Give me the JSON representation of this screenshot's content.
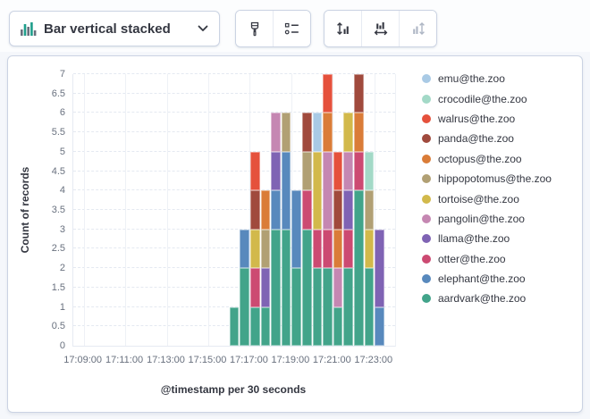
{
  "toolbar": {
    "chart_type": {
      "label": "Bar vertical stacked",
      "icon": "bar-vertical-stacked-icon"
    },
    "style_buttons": [
      {
        "name": "visual-options",
        "icon": "brush-icon"
      },
      {
        "name": "legend-settings",
        "icon": "legend-list-icon"
      }
    ],
    "axis_buttons": [
      {
        "name": "left-axis-settings",
        "icon": "axis-left-icon",
        "disabled": false
      },
      {
        "name": "bottom-axis-settings",
        "icon": "axis-bottom-icon",
        "disabled": false
      },
      {
        "name": "right-axis-settings",
        "icon": "axis-right-icon",
        "disabled": true
      }
    ]
  },
  "colors": {
    "icon_green": "#1E9E8B",
    "icon_gray": "#69707D",
    "disabled_icon": "#AEB6C4",
    "text_dark": "#343741",
    "tick_text": "#68707E",
    "border": "#CBD3E3",
    "page_bg": "#F5F7FB"
  },
  "chart_data": {
    "type": "bar",
    "stacked": true,
    "orientation": "vertical",
    "xlabel": "@timestamp per 30 seconds",
    "ylabel": "Count of records",
    "ylim": [
      0,
      7
    ],
    "y_tick_labels": [
      "0",
      "0.5",
      "1",
      "1.5",
      "2",
      "2.5",
      "3",
      "3.5",
      "4",
      "4.5",
      "5",
      "5.5",
      "6",
      "6.5",
      "7"
    ],
    "x_tick_labels": [
      "17:09:00",
      "17:11:00",
      "17:13:00",
      "17:15:00",
      "17:17:00",
      "17:19:00",
      "17:21:00",
      "17:23:00"
    ],
    "x_tick_slots": [
      1,
      5,
      9,
      13,
      17,
      21,
      25,
      29
    ],
    "total_slots": 31,
    "x_domain_start": "17:08:30",
    "bucket_interval": "30 seconds",
    "first_bar_slot": 15,
    "bar_times": [
      "17:16:00",
      "17:16:30",
      "17:17:00",
      "17:17:30",
      "17:18:00",
      "17:18:30",
      "17:19:00",
      "17:19:30",
      "17:20:00",
      "17:20:30",
      "17:21:00",
      "17:21:30",
      "17:22:00",
      "17:22:30",
      "17:23:00"
    ],
    "legend_position": "right",
    "series": [
      {
        "name": "aardvark@the.zoo",
        "color": "#42A48A",
        "values": [
          1,
          2,
          1,
          1,
          3,
          3,
          2,
          3,
          2,
          2,
          1,
          2,
          4,
          2,
          0
        ]
      },
      {
        "name": "elephant@the.zoo",
        "color": "#5889BD",
        "values": [
          0,
          1,
          0,
          0,
          1,
          2,
          2,
          0,
          0,
          0,
          0,
          0,
          0,
          0,
          1
        ]
      },
      {
        "name": "otter@the.zoo",
        "color": "#CC4A72",
        "values": [
          0,
          0,
          1,
          0,
          0,
          0,
          0,
          1,
          1,
          1,
          0,
          1,
          1,
          0,
          0
        ]
      },
      {
        "name": "llama@the.zoo",
        "color": "#7F63B4",
        "values": [
          0,
          0,
          0,
          1,
          1,
          0,
          0,
          0,
          0,
          0,
          0,
          1,
          0,
          0,
          2
        ]
      },
      {
        "name": "pangolin@the.zoo",
        "color": "#C587B2",
        "values": [
          0,
          0,
          0,
          0,
          1,
          0,
          0,
          0,
          0,
          2,
          1,
          1,
          0,
          0,
          0
        ]
      },
      {
        "name": "tortoise@the.zoo",
        "color": "#D2B94B",
        "values": [
          0,
          0,
          1,
          0,
          0,
          0,
          0,
          0,
          2,
          0,
          0,
          1,
          0,
          1,
          0
        ]
      },
      {
        "name": "hippopotomus@the.zoo",
        "color": "#B1A074",
        "values": [
          0,
          0,
          0,
          1,
          0,
          1,
          0,
          1,
          0,
          0,
          0,
          0,
          0,
          1,
          0
        ]
      },
      {
        "name": "octopus@the.zoo",
        "color": "#DA7C38",
        "values": [
          0,
          0,
          0,
          1,
          0,
          0,
          0,
          0,
          0,
          1,
          1,
          0,
          1,
          0,
          0
        ]
      },
      {
        "name": "panda@the.zoo",
        "color": "#A04A3D",
        "values": [
          0,
          0,
          1,
          0,
          0,
          0,
          0,
          1,
          0,
          0,
          1,
          0,
          1,
          0,
          0
        ]
      },
      {
        "name": "walrus@the.zoo",
        "color": "#E5513C",
        "values": [
          0,
          0,
          1,
          0,
          0,
          0,
          0,
          0,
          0,
          1,
          1,
          0,
          0,
          0,
          0
        ]
      },
      {
        "name": "crocodile@the.zoo",
        "color": "#A3D9C7",
        "values": [
          0,
          0,
          0,
          0,
          0,
          0,
          0,
          0,
          0,
          0,
          0,
          0,
          0,
          1,
          0
        ]
      },
      {
        "name": "emu@the.zoo",
        "color": "#A9CAE5",
        "values": [
          0,
          0,
          0,
          0,
          0,
          0,
          0,
          0,
          1,
          0,
          0,
          0,
          0,
          0,
          0
        ]
      }
    ]
  }
}
